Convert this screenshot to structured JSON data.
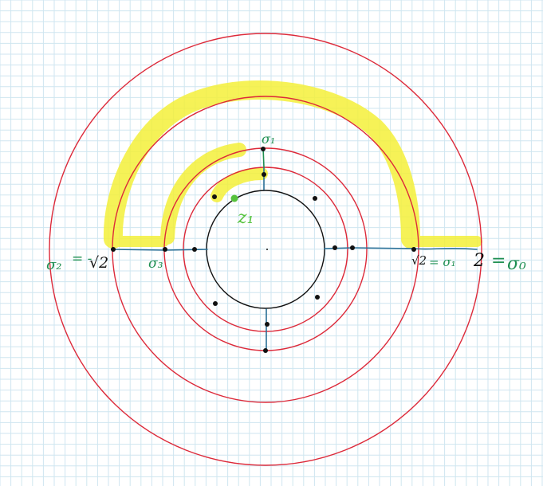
{
  "colors": {
    "grid_line": "#cfe6f0",
    "background": "#ffffff",
    "circle_red": "#dd2a3a",
    "circle_black": "#111111",
    "segment_blue": "#2a6f96",
    "highlight": "#f4f03a",
    "label_green": "#1f8f52",
    "label_black": "#111111",
    "point_green": "#55c23c"
  },
  "labels": {
    "sigma1": "σ₁",
    "z1": "z₁",
    "sigma3": "σ₃",
    "sigma2_part1": "σ₂",
    "sigma2_part2": "= -",
    "sigma2_part3": "√2",
    "right_sqrt2": "√2",
    "right_eq_sigma1": "= σ₁",
    "right_two": "2",
    "right_eq": "=",
    "right_sigma0": "σ₀"
  }
}
